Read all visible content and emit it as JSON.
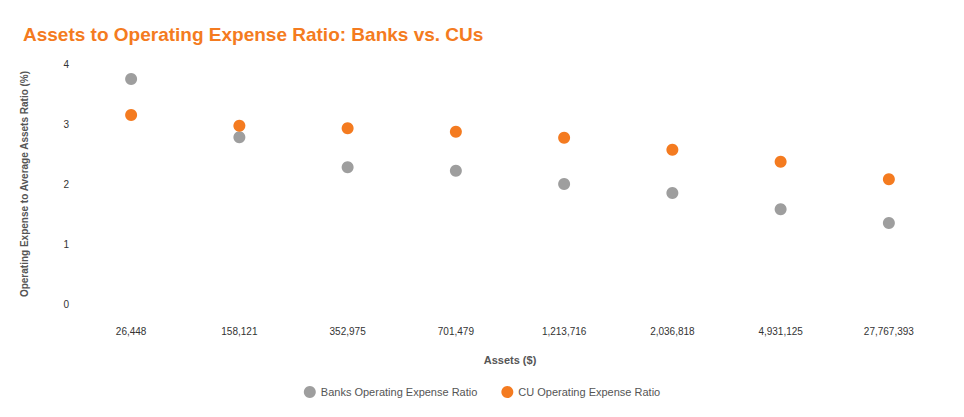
{
  "chart_data": {
    "type": "scatter",
    "title": "Assets to Operating Expense Ratio: Banks vs. CUs",
    "x_label": "Assets ($)",
    "y_label": "Operating Expense to Average Assets Ratio (%)",
    "categories": [
      "26,448",
      "158,121",
      "352,975",
      "701,479",
      "1,213,716",
      "2,036,818",
      "4,931,125",
      "27,767,393"
    ],
    "series": [
      {
        "name": "Banks Operating Expense Ratio",
        "color": "#9e9e9e",
        "marker": "circle",
        "values": [
          3.75,
          2.78,
          2.28,
          2.22,
          2.0,
          1.85,
          1.58,
          1.35
        ]
      },
      {
        "name": "CU Operating Expense Ratio",
        "color": "#f47b20",
        "marker": "circle",
        "values": [
          3.15,
          2.97,
          2.93,
          2.87,
          2.77,
          2.57,
          2.37,
          2.08
        ]
      }
    ],
    "ylim": [
      0,
      4
    ],
    "yticks": [
      0,
      1,
      2,
      3,
      4
    ],
    "grid": false,
    "legend": "bottom"
  }
}
